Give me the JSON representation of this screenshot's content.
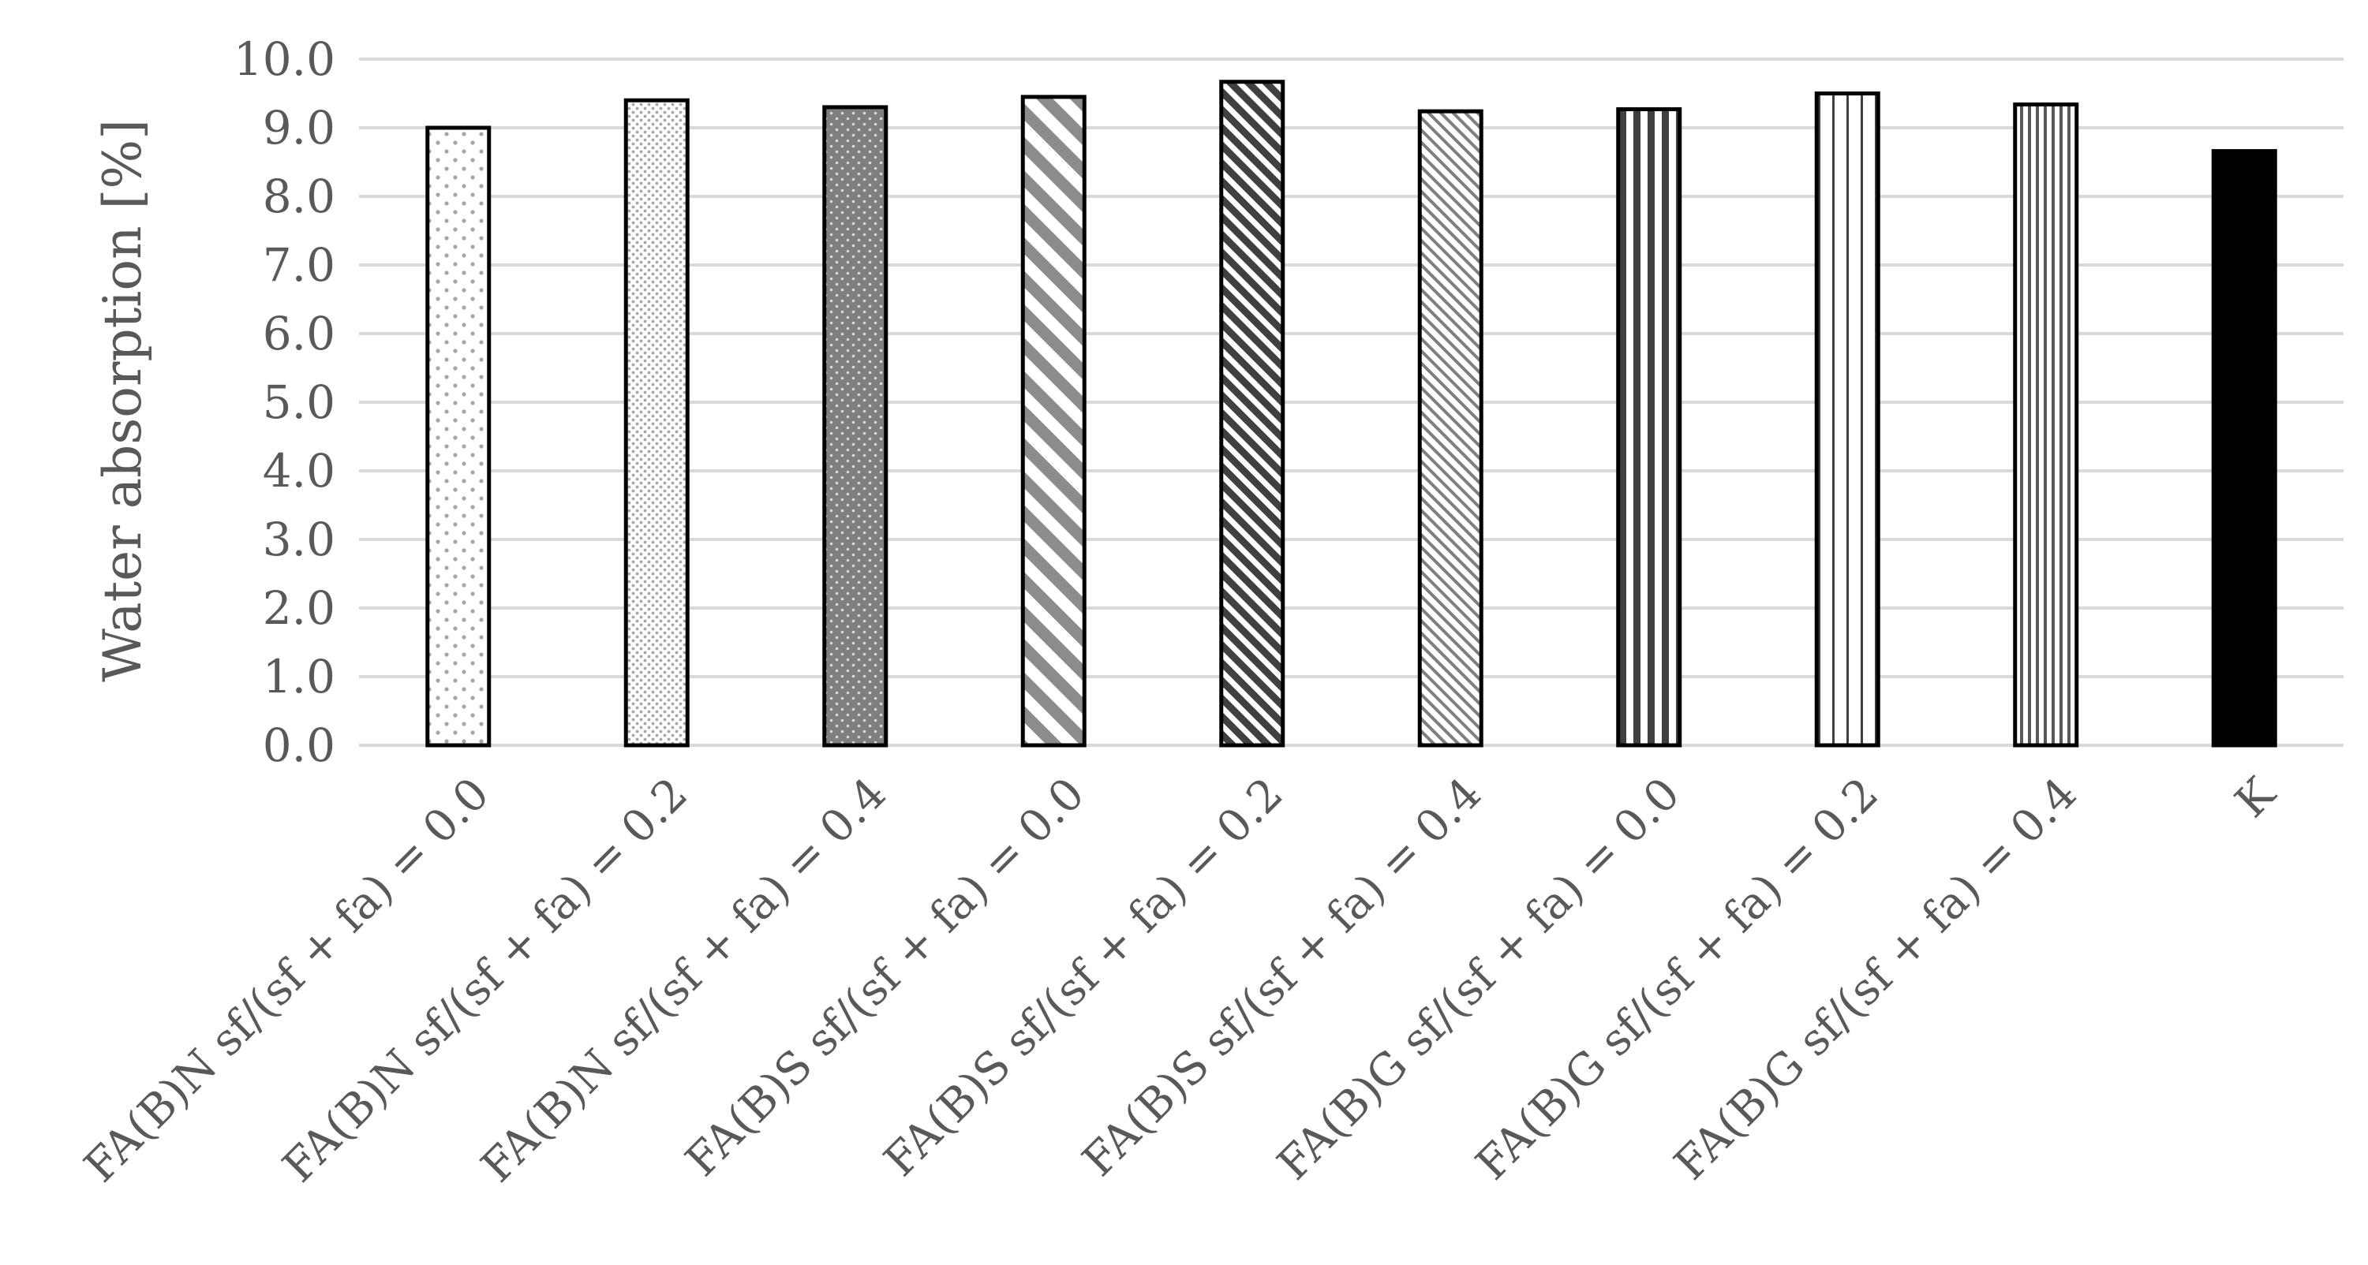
{
  "chart_data": {
    "type": "bar",
    "title": "",
    "xlabel": "",
    "ylabel": "Water absorption [%]",
    "ylim": [
      0,
      10
    ],
    "yticks": [
      "0.0",
      "1.0",
      "2.0",
      "3.0",
      "4.0",
      "5.0",
      "6.0",
      "7.0",
      "8.0",
      "9.0",
      "10.0"
    ],
    "grid": true,
    "legend": "none",
    "categories": [
      "FA(B)N sf/(sf + fa) = 0.0",
      "FA(B)N sf/(sf + fa) = 0.2",
      "FA(B)N sf/(sf + fa) = 0.4",
      "FA(B)S sf/(sf + fa) = 0.0",
      "FA(B)S sf/(sf + fa) = 0.2",
      "FA(B)S sf/(sf + fa) = 0.4",
      "FA(B)G sf/(sf + fa) = 0.0",
      "FA(B)G sf/(sf + fa) = 0.2",
      "FA(B)G sf/(sf + fa) = 0.4",
      "K"
    ],
    "values": [
      9.0,
      9.4,
      9.3,
      9.45,
      9.67,
      9.24,
      9.27,
      9.5,
      9.34,
      8.66
    ],
    "patterns": [
      "sparse-dots",
      "fine-dots",
      "dark-dots",
      "wide-diagonal",
      "dense-diagonal",
      "fine-diagonal",
      "bold-vertical",
      "thin-vertical",
      "fine-vertical",
      "solid"
    ],
    "colors": {
      "bar_outline": "#000000",
      "pattern_light": "#bfbfbf",
      "pattern_mid": "#8c8c8c",
      "pattern_dark": "#404040",
      "solid_fill": "#000000",
      "grid": "#d9d9d9",
      "text": "#595959"
    }
  }
}
